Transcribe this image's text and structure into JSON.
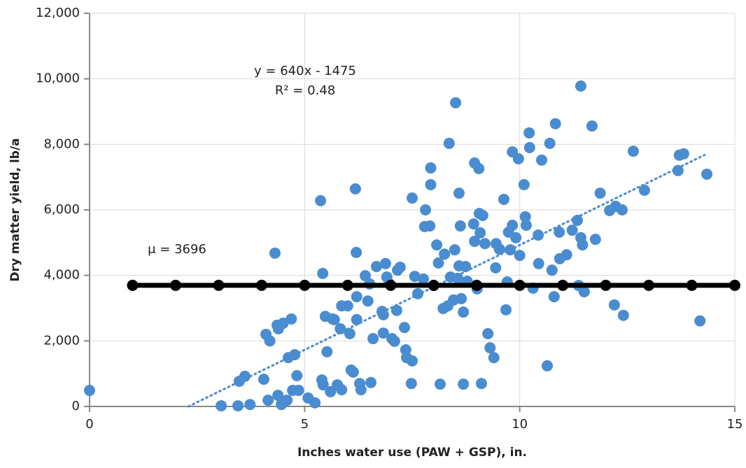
{
  "chart_data": {
    "type": "scatter",
    "xlabel": "Inches water use (PAW + GSP), in.",
    "ylabel": "Dry matter yield, lb/a",
    "xlim": [
      0,
      15
    ],
    "ylim": [
      0,
      12000
    ],
    "xticks": [
      0,
      5,
      10,
      15
    ],
    "yticks": [
      0,
      {
        "value": 2000,
        "label": "2,000"
      },
      {
        "value": 4000,
        "label": "4,000"
      },
      {
        "value": 6000,
        "label": "6,000"
      },
      {
        "value": 8000,
        "label": "8,000"
      },
      {
        "value": 10000,
        "label": "10,000"
      },
      {
        "value": 12000,
        "label": "12,000"
      }
    ],
    "grid": true,
    "series": [
      {
        "color": "#4a8cd0",
        "x": [
          0,
          3.06,
          3.45,
          3.48,
          3.61,
          3.73,
          4.05,
          4.1,
          4.19,
          4.15,
          4.31,
          4.36,
          4.39,
          4.5,
          4.69,
          4.62,
          4.77,
          4.82,
          4.38,
          4.46,
          4.59,
          4.72,
          4.86,
          5.08,
          5.24,
          5.37,
          5.42,
          5.4,
          5.43,
          5.48,
          5.52,
          5.6,
          5.65,
          5.69,
          5.76,
          5.86,
          5.83,
          5.86,
          6.0,
          6.05,
          6.08,
          6.13,
          6.18,
          6.2,
          6.21,
          6.21,
          6.28,
          6.31,
          6.41,
          6.47,
          6.51,
          6.54,
          6.59,
          6.67,
          6.8,
          6.83,
          6.83,
          6.88,
          6.91,
          6.96,
          7.03,
          7.09,
          7.14,
          7.16,
          7.22,
          7.32,
          7.35,
          7.37,
          7.5,
          7.48,
          7.5,
          7.56,
          7.63,
          7.76,
          7.79,
          7.81,
          7.91,
          7.93,
          7.93,
          8.0,
          8.07,
          8.11,
          8.15,
          8.22,
          8.25,
          8.33,
          8.36,
          8.39,
          8.46,
          8.49,
          8.51,
          8.56,
          8.59,
          8.59,
          8.62,
          8.64,
          8.69,
          8.69,
          8.74,
          8.78,
          8.95,
          8.93,
          8.95,
          9.01,
          9.05,
          9.06,
          9.08,
          9.11,
          9.14,
          9.19,
          9.26,
          9.31,
          9.4,
          9.44,
          9.45,
          9.53,
          9.63,
          9.68,
          9.71,
          9.74,
          9.78,
          9.83,
          9.83,
          9.91,
          9.97,
          10.0,
          10.1,
          10.15,
          10.13,
          10.22,
          10.23,
          10.31,
          10.43,
          10.44,
          10.51,
          10.64,
          10.7,
          10.75,
          10.8,
          10.83,
          10.92,
          10.93,
          11.09,
          11.22,
          11.34,
          11.37,
          11.42,
          11.42,
          11.46,
          11.5,
          11.68,
          11.76,
          11.87,
          12.09,
          12.2,
          12.23,
          12.38,
          12.41,
          12.64,
          12.9,
          13.68,
          13.71,
          13.81,
          14.19,
          14.35
        ],
        "values": [
          490,
          20,
          20,
          770,
          920,
          60,
          830,
          2200,
          2000,
          190,
          4680,
          2480,
          2370,
          2540,
          2670,
          1490,
          1580,
          940,
          340,
          60,
          190,
          490,
          490,
          260,
          110,
          6280,
          4060,
          810,
          660,
          2750,
          1670,
          450,
          2670,
          2650,
          660,
          510,
          2370,
          3070,
          3070,
          2220,
          1110,
          1050,
          6640,
          4700,
          3350,
          2650,
          700,
          510,
          3990,
          3220,
          3740,
          730,
          2070,
          4270,
          2900,
          2240,
          2800,
          4360,
          3950,
          3760,
          2070,
          1990,
          2930,
          4160,
          4250,
          2410,
          1730,
          1490,
          1390,
          700,
          6360,
          3970,
          3440,
          3890,
          5490,
          6000,
          5510,
          7280,
          6770,
          3690,
          4930,
          4380,
          680,
          2990,
          4650,
          3070,
          8030,
          3950,
          3250,
          4780,
          9270,
          3910,
          4290,
          6510,
          5510,
          3290,
          680,
          2880,
          4270,
          3820,
          7430,
          5570,
          5040,
          3590,
          7260,
          5890,
          5300,
          700,
          5830,
          4970,
          2220,
          1790,
          1490,
          4230,
          4970,
          4800,
          6320,
          2950,
          3800,
          5320,
          4780,
          5530,
          7770,
          5150,
          7560,
          4610,
          6770,
          5530,
          5790,
          8350,
          7900,
          3610,
          5230,
          4360,
          7520,
          1240,
          8030,
          4160,
          3350,
          8630,
          5320,
          4510,
          4630,
          5380,
          5680,
          3690,
          9780,
          5150,
          4930,
          3500,
          8560,
          5100,
          6510,
          5980,
          3100,
          6110,
          6000,
          2780,
          7790,
          6600,
          7200,
          7670,
          7710,
          2610,
          7090
        ]
      }
    ],
    "mean_line": {
      "color": "#000000",
      "x": [
        1,
        2,
        3,
        4,
        5,
        6,
        7,
        8,
        9,
        10,
        11,
        12,
        13,
        14,
        15
      ],
      "values": [
        3696,
        3696,
        3696,
        3696,
        3696,
        3696,
        3696,
        3696,
        3696,
        3696,
        3696,
        3696,
        3696,
        3696,
        3696
      ]
    },
    "trendline": {
      "color": "#4a8cd0",
      "x": [
        2.3,
        14.3
      ],
      "values": [
        0,
        7677
      ]
    },
    "annotations": [
      "y = 640x - 1475",
      "R² = 0.48",
      "μ = 3696"
    ]
  }
}
